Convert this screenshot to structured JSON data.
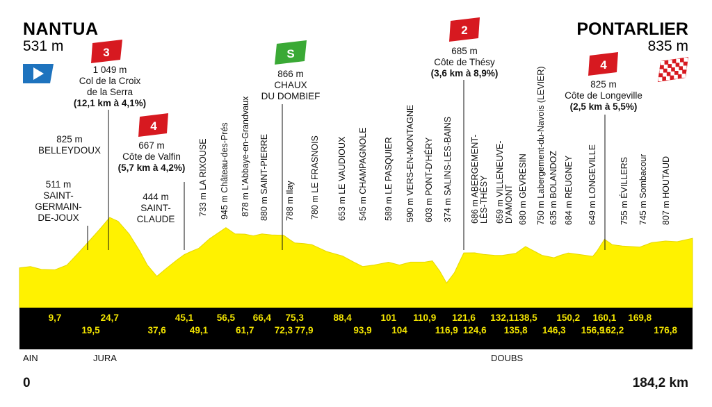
{
  "start": {
    "name": "NANTUA",
    "altitude": "531 m"
  },
  "finish": {
    "name": "PONTARLIER",
    "altitude": "835 m"
  },
  "distance_start": "0",
  "distance_total": "184,2 km",
  "regions": [
    "AIN",
    "JURA",
    "DOUBS"
  ],
  "colors": {
    "profile": "#fff200",
    "climb_badge": "#d71920",
    "sprint_badge": "#3aa935",
    "start_flag": "#1e73be",
    "distance_band": "#000000",
    "km_text": "#f2e400"
  },
  "climbs": [
    {
      "category": "3",
      "altitude": "1 049 m",
      "name_line1": "Col de la Croix",
      "name_line2": "de la Serra",
      "detail": "(12,1 km à 4,1%)"
    },
    {
      "category": "4",
      "altitude": "667 m",
      "name_line1": "Côte de Valfin",
      "detail": "(5,7 km à 4,2%)"
    },
    {
      "category": "2",
      "altitude": "685 m",
      "name_line1": "Côte de Thésy",
      "detail": "(3,6 km à 8,9%)"
    },
    {
      "category": "4",
      "altitude": "825 m",
      "name_line1": "Côte de Longeville",
      "detail": "(2,5 km à 5,5%)"
    }
  ],
  "sprint": {
    "altitude": "866 m",
    "name_line1": "CHAUX",
    "name_line2": "DU DOMBIEF"
  },
  "places_horizontal": [
    {
      "altitude": "511 m",
      "line1": "SAINT-",
      "line2": "GERMAIN-",
      "line3": "DE-JOUX"
    },
    {
      "altitude": "825 m",
      "line1": "BELLEYDOUX"
    },
    {
      "altitude": "444 m",
      "line1": "SAINT-",
      "line2": "CLAUDE"
    }
  ],
  "places_vertical": [
    "733 m LA RIXOUSE",
    "945 m Château-des-Prés",
    "878 m L'Abbaye-en-Grandvaux",
    "880 m SAINT-PIERRE",
    "788 m Ilay",
    "780 m LE FRASNOIS",
    "653 m LE VAUDIOUX",
    "545 m CHAMPAGNOLE",
    "589 m LE PASQUIER",
    "590 m VERS-EN-MONTAGNE",
    "603 m PONT-D'HÉRY",
    "374 m SALINS-LES-BAINS",
    "686 m ABERGEMENT-",
    "LÈS-THÉSY",
    "659 m VILLENEUVE-",
    "D'AMONT",
    "680 m GEVRESIN",
    "750 m Labergement-du-Navois (LEVIER)",
    "635 m BOLANDOZ",
    "684 m REUGNEY",
    "649 m LONGEVILLE",
    "755 m ÉVILLERS",
    "745 m Sombacour",
    "807 m HOUTAUD"
  ],
  "chart_data": {
    "type": "area",
    "title": "",
    "xlabel": "",
    "ylabel": "",
    "x_unit": "km",
    "y_unit": "m",
    "xlim": [
      0,
      184.2
    ],
    "grid": false,
    "profile": {
      "x": [
        0,
        3,
        6,
        9.7,
        13,
        16,
        19.5,
        22,
        24.7,
        27,
        30,
        33,
        35,
        37.6,
        40,
        43,
        45.1,
        47,
        49.1,
        52,
        56.5,
        59,
        61.7,
        64,
        66.4,
        69,
        72.3,
        74,
        75.3,
        77.9,
        80,
        84,
        88.4,
        91,
        93.9,
        97,
        101,
        104,
        107,
        110.9,
        113,
        115,
        116.9,
        119,
        121.6,
        124.6,
        127,
        130,
        132.1,
        135.8,
        138.5,
        141,
        143,
        146.3,
        148,
        150.2,
        153,
        156.9,
        158,
        160.1,
        162.2,
        165,
        169.8,
        173,
        176.8,
        180,
        184.2
      ],
      "y": [
        531,
        545,
        515,
        511,
        560,
        680,
        825,
        930,
        1049,
        1010,
        880,
        700,
        560,
        444,
        520,
        610,
        667,
        700,
        733,
        830,
        945,
        880,
        878,
        860,
        880,
        870,
        866,
        820,
        788,
        780,
        770,
        700,
        653,
        600,
        545,
        560,
        589,
        560,
        590,
        590,
        603,
        500,
        374,
        480,
        685,
        686,
        670,
        660,
        659,
        680,
        750,
        700,
        660,
        635,
        660,
        684,
        670,
        649,
        700,
        825,
        770,
        755,
        745,
        790,
        807,
        800,
        835
      ]
    },
    "km_markers": [
      "9,7",
      "19,5",
      "24,7",
      "37,6",
      "45,1",
      "49,1",
      "56,5",
      "61,7",
      "66,4",
      "72,3",
      "75,3",
      "77,9",
      "88,4",
      "93,9",
      "101",
      "104",
      "110,9",
      "116,9",
      "121,6",
      "124,6",
      "132,1",
      "135,8",
      "138,5",
      "146,3",
      "150,2",
      "156,9",
      "160,1",
      "162,2",
      "169,8",
      "176,8"
    ],
    "km_values": [
      9.7,
      19.5,
      24.7,
      37.6,
      45.1,
      49.1,
      56.5,
      61.7,
      66.4,
      72.3,
      75.3,
      77.9,
      88.4,
      93.9,
      101,
      104,
      110.9,
      116.9,
      121.6,
      124.6,
      132.1,
      135.8,
      138.5,
      146.3,
      150.2,
      156.9,
      160.1,
      162.2,
      169.8,
      176.8
    ]
  }
}
